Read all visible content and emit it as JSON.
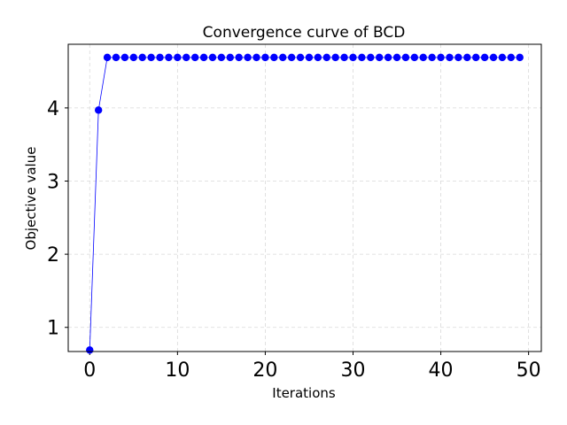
{
  "chart_data": {
    "type": "line",
    "title": "Convergence curve of BCD",
    "xlabel": "Iterations",
    "ylabel": "Objective value",
    "xlim": [
      -2.45,
      51.45
    ],
    "ylim": [
      0.67,
      4.87
    ],
    "xticks": [
      0,
      10,
      20,
      30,
      40,
      50
    ],
    "yticks": [
      1,
      2,
      3,
      4
    ],
    "grid": true,
    "series": [
      {
        "color": "#0000ff",
        "marker": "circle",
        "x": [
          0,
          1,
          2,
          3,
          4,
          5,
          6,
          7,
          8,
          9,
          10,
          11,
          12,
          13,
          14,
          15,
          16,
          17,
          18,
          19,
          20,
          21,
          22,
          23,
          24,
          25,
          26,
          27,
          28,
          29,
          30,
          31,
          32,
          33,
          34,
          35,
          36,
          37,
          38,
          39,
          40,
          41,
          42,
          43,
          44,
          45,
          46,
          47,
          48,
          49
        ],
        "values": [
          0.69,
          3.97,
          4.69,
          4.69,
          4.69,
          4.69,
          4.69,
          4.69,
          4.69,
          4.69,
          4.69,
          4.69,
          4.69,
          4.69,
          4.69,
          4.69,
          4.69,
          4.69,
          4.69,
          4.69,
          4.69,
          4.69,
          4.69,
          4.69,
          4.69,
          4.69,
          4.69,
          4.69,
          4.69,
          4.69,
          4.69,
          4.69,
          4.69,
          4.69,
          4.69,
          4.69,
          4.69,
          4.69,
          4.69,
          4.69,
          4.69,
          4.69,
          4.69,
          4.69,
          4.69,
          4.69,
          4.69,
          4.69,
          4.69,
          4.69
        ]
      }
    ]
  }
}
